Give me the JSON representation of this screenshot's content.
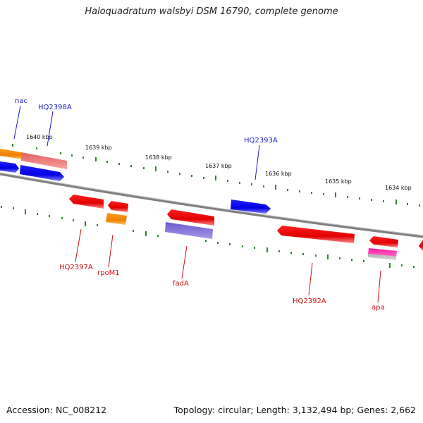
{
  "title": "Haloquadratum walsbyi DSM 16790, complete genome",
  "footer": {
    "accession": "Accession: NC_008212",
    "topology": "Topology: circular; Length: 3,132,494 bp; Genes: 2,662"
  },
  "colors": {
    "backbone": "#8a8a8a",
    "tick": "#2a8a2a",
    "label_top": "#1a1ad0",
    "label_bottom": "#cc1111"
  },
  "ticks": [
    {
      "label": "1640 kbp"
    },
    {
      "label": "1639 kbp"
    },
    {
      "label": "1638 kbp"
    },
    {
      "label": "1637 kbp"
    },
    {
      "label": "1636 kbp"
    },
    {
      "label": "1635 kbp"
    },
    {
      "label": "1634 kbp"
    }
  ],
  "genes_top": [
    {
      "label": "nac"
    },
    {
      "label": "HQ2398A"
    },
    {
      "label": "HQ2393A"
    }
  ],
  "genes_bottom": [
    {
      "label": "HQ2397A"
    },
    {
      "label": "rpoM1"
    },
    {
      "label": "fadA"
    },
    {
      "label": "HQ2392A"
    },
    {
      "label": "apa"
    }
  ]
}
